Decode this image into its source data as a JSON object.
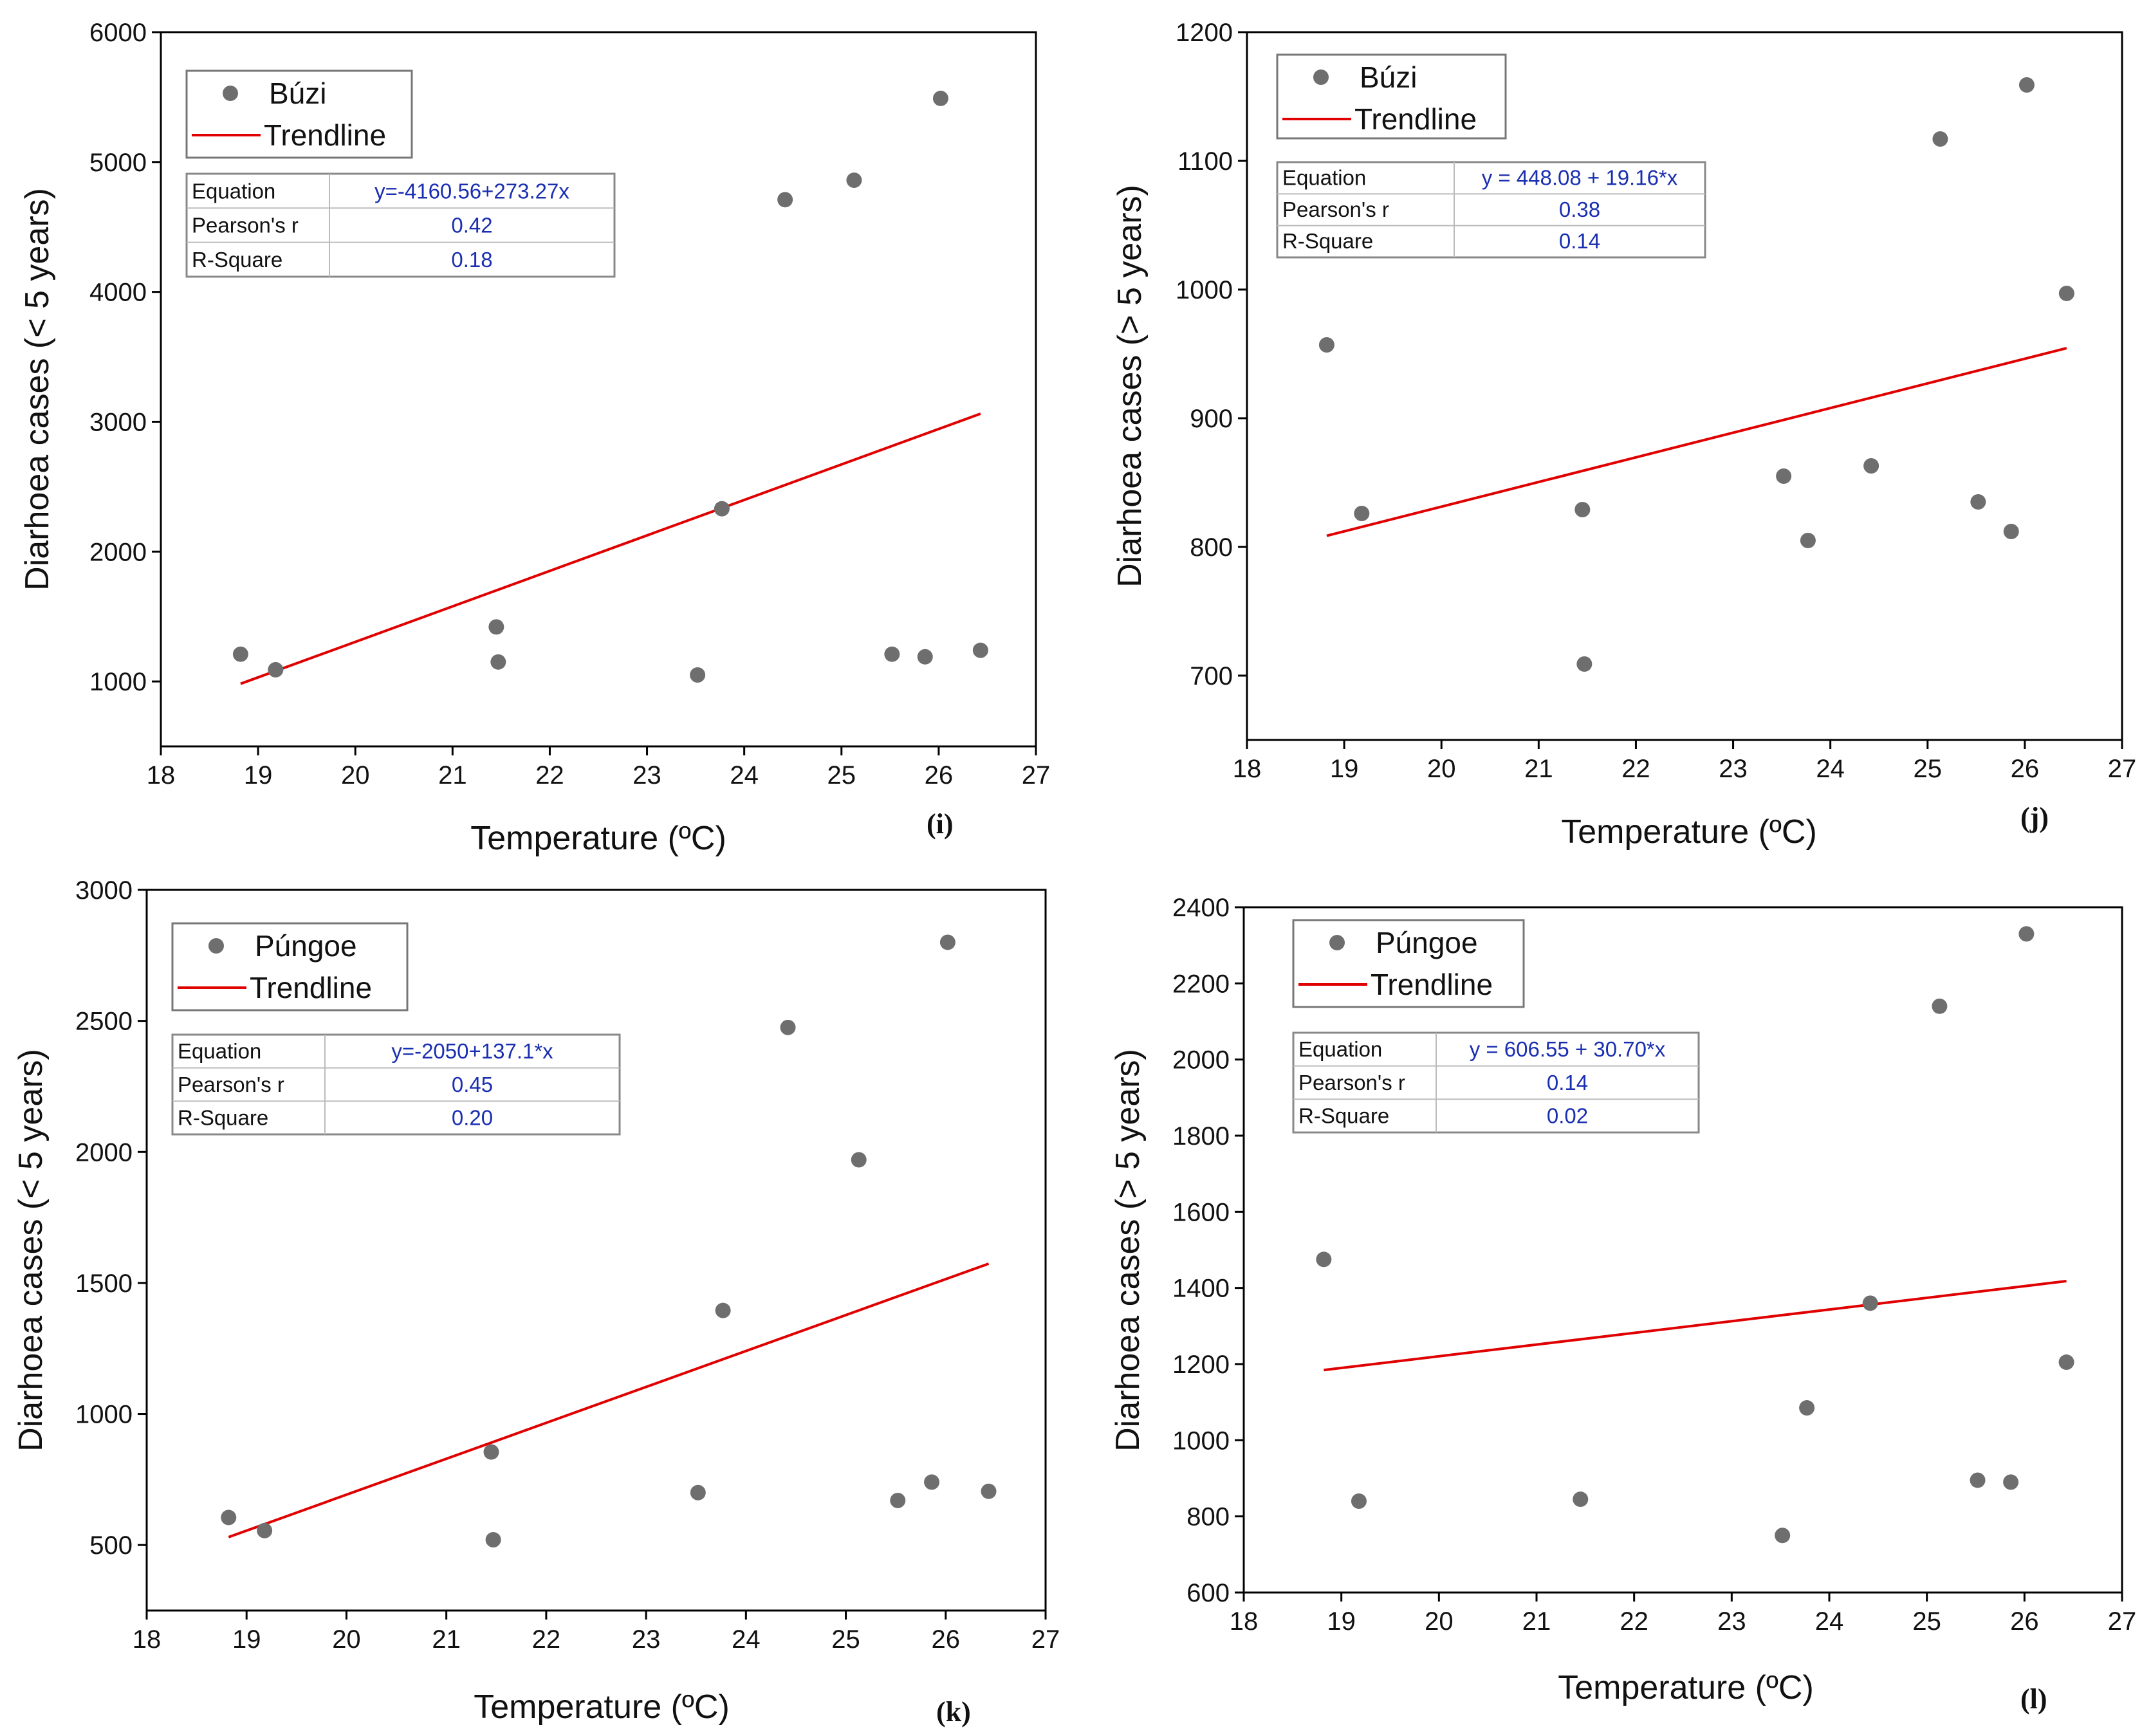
{
  "colors": {
    "point": "#6e6e6e",
    "trendline": "#e00000",
    "stats_value": "#1a2fb0"
  },
  "chart_data": [
    {
      "id": "i",
      "type": "scatter",
      "panel_label": "(i)",
      "xlabel": "Temperature (ºC)",
      "ylabel": "Diarhoea cases (< 5 years)",
      "xlim": [
        18,
        27
      ],
      "ylim": [
        500,
        6000
      ],
      "xticks": [
        18,
        19,
        20,
        21,
        22,
        23,
        24,
        25,
        26,
        27
      ],
      "yticks": [
        1000,
        2000,
        3000,
        4000,
        5000,
        6000
      ],
      "legend": {
        "series_name": "Búzi",
        "trend_name": "Trendline"
      },
      "stats": [
        {
          "key": "Equation",
          "value": "y=-4160.56+273.27x"
        },
        {
          "key": "Pearson's r",
          "value": "0.42"
        },
        {
          "key": "R-Square",
          "value": "0.18"
        }
      ],
      "x": [
        18.82,
        19.18,
        21.45,
        21.47,
        23.52,
        23.77,
        24.42,
        25.13,
        25.52,
        25.86,
        26.02,
        26.43
      ],
      "y": [
        1210,
        1090,
        1420,
        1150,
        1050,
        2330,
        4710,
        4860,
        1210,
        1190,
        5490,
        1240
      ],
      "trend_x": [
        18.82,
        26.43
      ]
    },
    {
      "id": "j",
      "type": "scatter",
      "panel_label": "(j)",
      "xlabel": "Temperature (ºC)",
      "ylabel": "Diarhoea cases (> 5 years)",
      "xlim": [
        18,
        27
      ],
      "ylim": [
        650,
        1200
      ],
      "xticks": [
        18,
        19,
        20,
        21,
        22,
        23,
        24,
        25,
        26,
        27
      ],
      "yticks": [
        700,
        800,
        900,
        1000,
        1100,
        1200
      ],
      "legend": {
        "series_name": "Búzi",
        "trend_name": "Trendline"
      },
      "stats": [
        {
          "key": "Equation",
          "value": "y = 448.08 + 19.16*x"
        },
        {
          "key": "Pearson's r",
          "value": "0.38"
        },
        {
          "key": "R-Square",
          "value": "0.14"
        }
      ],
      "x": [
        18.82,
        19.18,
        21.45,
        21.47,
        23.52,
        23.77,
        24.42,
        25.13,
        25.52,
        25.86,
        26.02,
        26.43
      ],
      "y": [
        957,
        826,
        829,
        709,
        855,
        805,
        863,
        1117,
        835,
        812,
        1159,
        997
      ],
      "trend_x": [
        18.82,
        26.43
      ]
    },
    {
      "id": "k",
      "type": "scatter",
      "panel_label": "(k)",
      "xlabel": "Temperature (ºC)",
      "ylabel": "Diarhoea cases (< 5 years)",
      "xlim": [
        18,
        27
      ],
      "ylim": [
        250,
        3000
      ],
      "xticks": [
        18,
        19,
        20,
        21,
        22,
        23,
        24,
        25,
        26,
        27
      ],
      "yticks": [
        500,
        1000,
        1500,
        2000,
        2500,
        3000
      ],
      "legend": {
        "series_name": "Púngoe",
        "trend_name": "Trendline"
      },
      "stats": [
        {
          "key": "Equation",
          "value": "y=-2050+137.1*x"
        },
        {
          "key": "Pearson's r",
          "value": "0.45"
        },
        {
          "key": "R-Square",
          "value": "0.20"
        }
      ],
      "x": [
        18.82,
        19.18,
        21.45,
        21.47,
        23.52,
        23.77,
        24.42,
        25.13,
        25.52,
        25.86,
        26.02,
        26.43
      ],
      "y": [
        605,
        555,
        855,
        520,
        700,
        1395,
        2475,
        1970,
        670,
        740,
        2800,
        705
      ],
      "trend_x": [
        18.82,
        26.43
      ]
    },
    {
      "id": "l",
      "type": "scatter",
      "panel_label": "(l)",
      "xlabel": "Temperature (ºC)",
      "ylabel": "Diarhoea cases (> 5 years)",
      "xlim": [
        18,
        27
      ],
      "ylim": [
        600,
        2400
      ],
      "xticks": [
        18,
        19,
        20,
        21,
        22,
        23,
        24,
        25,
        26,
        27
      ],
      "yticks": [
        600,
        800,
        1000,
        1200,
        1400,
        1600,
        1800,
        2000,
        2200,
        2400
      ],
      "legend": {
        "series_name": "Púngoe",
        "trend_name": "Trendline"
      },
      "stats": [
        {
          "key": "Equation",
          "value": "y = 606.55 + 30.70*x"
        },
        {
          "key": "Pearson's r",
          "value": "0.14"
        },
        {
          "key": "R-Square",
          "value": "0.02"
        }
      ],
      "x": [
        18.82,
        19.18,
        21.45,
        23.52,
        23.77,
        24.42,
        25.13,
        25.52,
        25.86,
        26.02,
        26.43
      ],
      "y": [
        1475,
        840,
        845,
        750,
        1085,
        1360,
        2140,
        895,
        890,
        2330,
        1205
      ],
      "trend_x": [
        18.82,
        26.43
      ]
    }
  ]
}
